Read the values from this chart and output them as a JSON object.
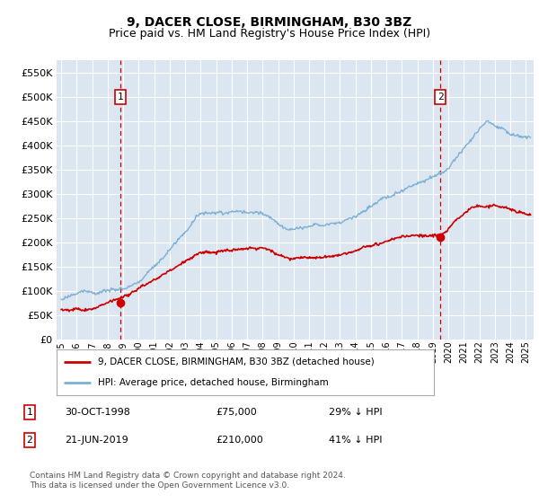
{
  "title": "9, DACER CLOSE, BIRMINGHAM, B30 3BZ",
  "subtitle": "Price paid vs. HM Land Registry's House Price Index (HPI)",
  "legend_line1": "9, DACER CLOSE, BIRMINGHAM, B30 3BZ (detached house)",
  "legend_line2": "HPI: Average price, detached house, Birmingham",
  "sale1_date": "30-OCT-1998",
  "sale1_price": "£75,000",
  "sale1_hpi": "29% ↓ HPI",
  "sale1_year": 1998.83,
  "sale1_value": 75000,
  "sale2_date": "21-JUN-2019",
  "sale2_price": "£210,000",
  "sale2_hpi": "41% ↓ HPI",
  "sale2_year": 2019.47,
  "sale2_value": 210000,
  "copyright": "Contains HM Land Registry data © Crown copyright and database right 2024.\nThis data is licensed under the Open Government Licence v3.0.",
  "ylim": [
    0,
    575000
  ],
  "yticks": [
    0,
    50000,
    100000,
    150000,
    200000,
    250000,
    300000,
    350000,
    400000,
    450000,
    500000,
    550000
  ],
  "xlim_start": 1994.7,
  "xlim_end": 2025.5,
  "bg_color": "#dce6f1",
  "red_color": "#cc0000",
  "blue_color": "#7bafd4",
  "grid_color": "#ffffff",
  "dashed_line_color": "#cc0000",
  "title_fontsize": 10,
  "subtitle_fontsize": 9
}
